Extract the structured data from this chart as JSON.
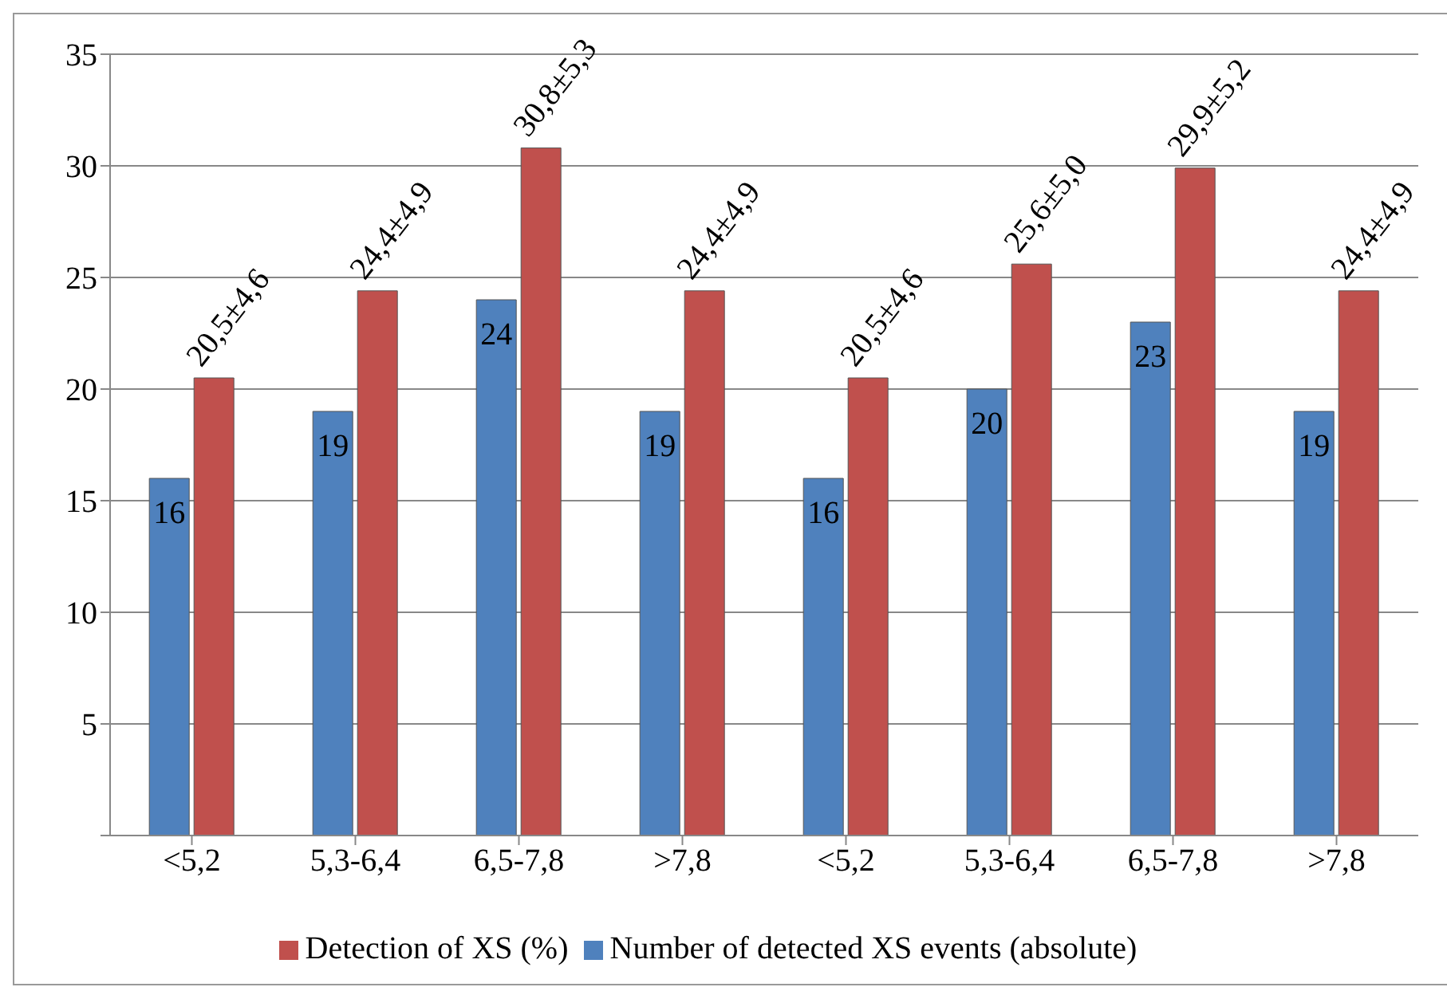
{
  "chart_data": {
    "type": "bar",
    "categories": [
      "<5,2",
      "5,3-6,4",
      "6,5-7,8",
      ">7,8",
      "<5,2",
      "5,3-6,4",
      "6,5-7,8",
      ">7,8"
    ],
    "series": [
      {
        "name": "Number of detected XS events (absolute)",
        "color": "#4f81bd",
        "values": [
          16,
          19,
          24,
          19,
          16,
          20,
          23,
          19
        ],
        "value_labels": [
          "16",
          "19",
          "24",
          "19",
          "16",
          "20",
          "23",
          "19"
        ]
      },
      {
        "name": "Detection of XS (%)",
        "color": "#c0504d",
        "values": [
          20.5,
          24.4,
          30.8,
          24.4,
          20.5,
          25.6,
          29.9,
          24.4
        ],
        "value_labels": [
          "20,5±4,6",
          "24,4±4,9",
          "30,8±5,3",
          "24,4±4,9",
          "20,5±4,6",
          "25,6±5,0",
          "29,9±5,2",
          "24,4±4,9"
        ]
      }
    ],
    "ylim": [
      0,
      35
    ],
    "yticks": [
      {
        "value": 0,
        "label": null
      },
      5,
      10,
      15,
      20,
      25,
      30,
      35
    ],
    "grid": "y",
    "legend": "bottom"
  }
}
